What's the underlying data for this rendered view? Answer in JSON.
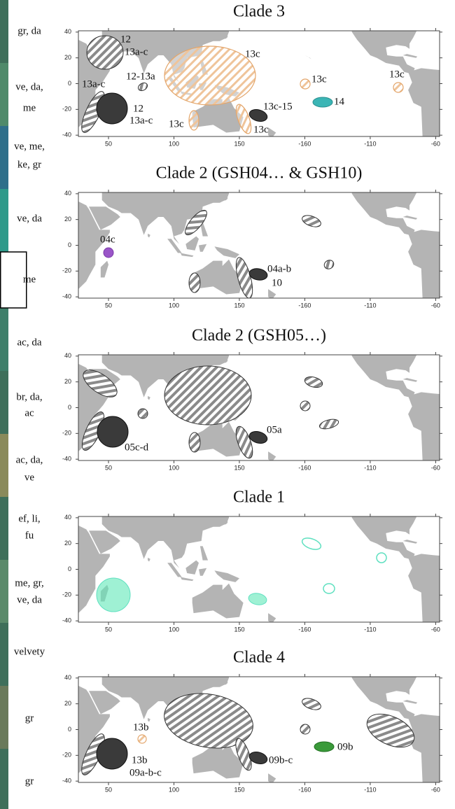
{
  "axes": {
    "xlim": [
      27,
      303
    ],
    "ylim": [
      -41,
      41
    ],
    "xticks": [
      50,
      100,
      150,
      {
        "value": 200,
        "label": "-160"
      },
      {
        "value": 250,
        "label": "-110"
      },
      {
        "value": 300,
        "label": "-60"
      }
    ],
    "yticks": [
      40,
      20,
      0,
      -20,
      -40
    ]
  },
  "panels": [
    {
      "title": "Clade 3",
      "labels": [
        "12",
        "13a-c",
        "12-13a",
        "13a-c",
        "12",
        "13a-c",
        "13c",
        "13c",
        "13c",
        "13c-15",
        "14",
        "13c",
        "13c"
      ]
    },
    {
      "title": "Clade 2 (GSH04… & GSH10)",
      "labels": [
        "04c",
        "04a-b",
        "10"
      ]
    },
    {
      "title": "Clade 2 (GSH05…)",
      "labels": [
        "05c-d",
        "05a"
      ]
    },
    {
      "title": "Clade 1",
      "labels": []
    },
    {
      "title": "Clade 4",
      "labels": [
        "13b",
        "13b",
        "09a-b-c",
        "09b-c",
        "09b"
      ]
    }
  ],
  "side_labels": [
    [
      "gr, da"
    ],
    [
      "ve, da,",
      "me"
    ],
    [
      "ve, me,",
      "ke, gr"
    ],
    [
      "ve, da"
    ],
    [
      "me"
    ],
    [
      "ac, da"
    ],
    [
      "br, da,",
      "ac"
    ],
    [
      "ac, da,",
      "ve"
    ],
    [
      "ef, li,",
      "fu"
    ],
    [
      "me, gr,",
      "ve, da"
    ],
    [
      "velvety"
    ],
    [
      "gr"
    ],
    [
      "gr"
    ]
  ]
}
